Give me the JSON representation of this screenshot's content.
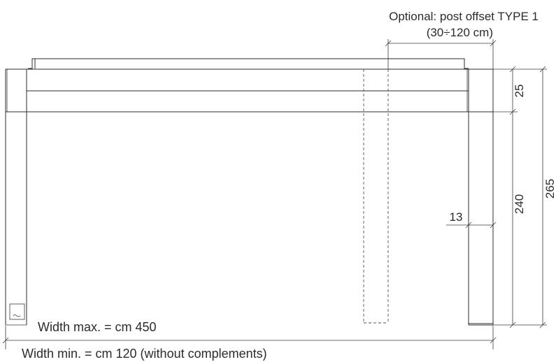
{
  "labels": {
    "optional_offset_title": "Optional: post offset TYPE 1",
    "optional_offset_range": "(30÷120 cm)",
    "dim_top_beam": "25",
    "dim_post_height": "240",
    "dim_total_height": "265",
    "dim_post_width": "13",
    "width_max": "Width max. = cm 450",
    "width_min": "Width min. = cm 120 (without complements)"
  }
}
